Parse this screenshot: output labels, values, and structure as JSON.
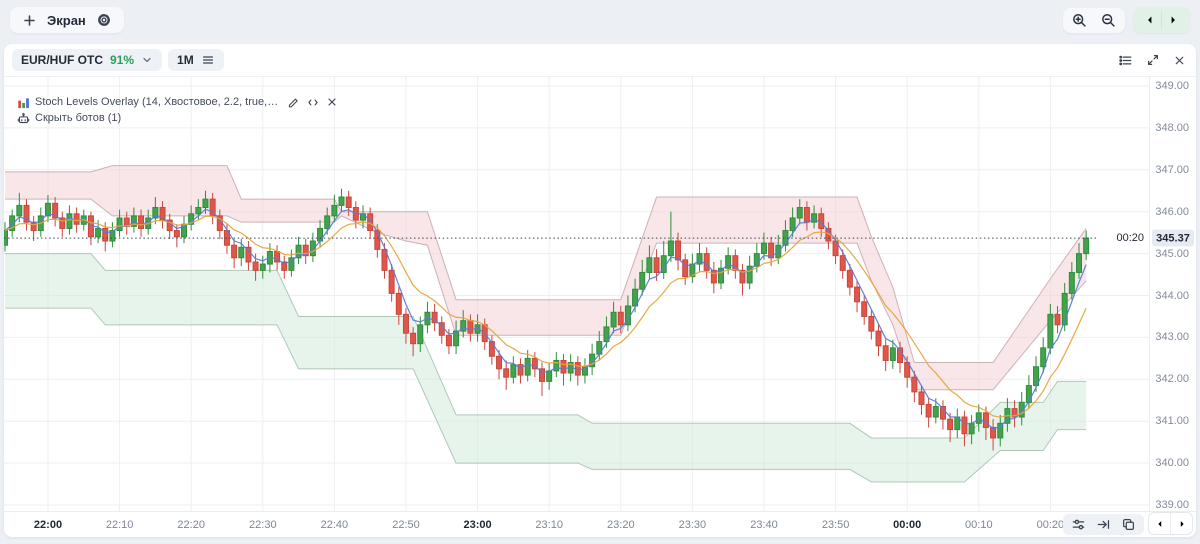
{
  "toolbar": {
    "screen_button_label": "Экран",
    "icons": [
      "plus-icon",
      "gear-icon",
      "zoom-in-icon",
      "zoom-out-icon",
      "chevron-left-icon",
      "chevron-right-icon"
    ]
  },
  "header": {
    "symbol": "EUR/HUF OTC",
    "payout": "91%",
    "timeframe": "1M",
    "icons": [
      "chevron-down-icon",
      "menu-icon",
      "list-icon",
      "expand-icon",
      "close-icon"
    ]
  },
  "legend": {
    "indicator_label": "Stoch Levels Overlay (14, Хвостовое, 2.2, true,…",
    "indicator_icons": [
      "chart-icon",
      "pencil-icon",
      "code-icon",
      "close-icon"
    ],
    "bots_label": "Скрыть ботов (1)",
    "bots_icon": "robot-icon"
  },
  "price_axis_labels": [
    "349.00",
    "348.00",
    "347.00",
    "346.00",
    "345.00",
    "344.00",
    "343.00",
    "342.00",
    "341.00",
    "340.00",
    "339.00"
  ],
  "time_axis_labels": [
    {
      "label": "22:00",
      "bold": true
    },
    {
      "label": "22:10",
      "bold": false
    },
    {
      "label": "22:20",
      "bold": false
    },
    {
      "label": "22:30",
      "bold": false
    },
    {
      "label": "22:40",
      "bold": false
    },
    {
      "label": "22:50",
      "bold": false
    },
    {
      "label": "23:00",
      "bold": true
    },
    {
      "label": "23:10",
      "bold": false
    },
    {
      "label": "23:20",
      "bold": false
    },
    {
      "label": "23:30",
      "bold": false
    },
    {
      "label": "23:40",
      "bold": false
    },
    {
      "label": "23:50",
      "bold": false
    },
    {
      "label": "00:00",
      "bold": true
    },
    {
      "label": "00:10",
      "bold": false
    },
    {
      "label": "00:20",
      "bold": false
    }
  ],
  "marker": {
    "time": "00:20",
    "price": "345.37"
  },
  "bottom_tools_icons": [
    "tune-icon",
    "skip-to-end-icon",
    "copy-icon",
    "chevron-left-icon",
    "chevron-right-icon"
  ],
  "chart_data": {
    "type": "candlestick",
    "symbol": "EUR/HUF OTC",
    "timeframe": "1M",
    "interval_minutes": 1,
    "x_first_candle_time": "21:54",
    "x_tick_labels": [
      "22:00",
      "22:10",
      "22:20",
      "22:30",
      "22:40",
      "22:50",
      "23:00",
      "23:10",
      "23:20",
      "23:30",
      "23:40",
      "23:50",
      "00:00",
      "00:10",
      "00:20"
    ],
    "y_range": [
      338.83,
      349.24
    ],
    "y_ticks": [
      339,
      340,
      341,
      342,
      343,
      344,
      345,
      346,
      347,
      348,
      349
    ],
    "current_price": 345.37,
    "current_time_label": "00:20",
    "grid": true,
    "indicator": "Stoch Levels Overlay",
    "colors": {
      "bull": "#43a24d",
      "bull_border": "#2e8e3b",
      "bear": "#e0564a",
      "bear_border": "#c7473c",
      "band_pink_fill": "#f2cdd1",
      "band_pink_edge": "#c6abaf",
      "band_green_fill": "#cfe9da",
      "band_green_edge": "#a6c3ae",
      "ma_fast": "#5b7bd5",
      "ma_slow": "#e8a33d",
      "grid": "#edeff3",
      "dotted": "#3f4450",
      "accent_green": "#2aa05b"
    },
    "overlays": [
      {
        "name": "fast-ma",
        "color": "#5b7bd5",
        "period": 4
      },
      {
        "name": "slow-ma",
        "color": "#e8a33d",
        "period": 10
      }
    ],
    "bands": {
      "upper_pink": [
        [
          0,
          346.95,
          346.3
        ],
        [
          12,
          346.95,
          346.3
        ],
        [
          15,
          347.1,
          345.9
        ],
        [
          31,
          347.1,
          345.9
        ],
        [
          33,
          346.3,
          345.75
        ],
        [
          46,
          346.3,
          345.75
        ],
        [
          47,
          346.0,
          345.9
        ],
        [
          52,
          346.0,
          345.5
        ],
        [
          56,
          346.0,
          345.3
        ],
        [
          59,
          346.0,
          345.2
        ],
        [
          63,
          343.9,
          343.05
        ],
        [
          86,
          343.9,
          343.05
        ],
        [
          91,
          346.35,
          345.25
        ],
        [
          119,
          346.35,
          345.25
        ],
        [
          121,
          345.4,
          344.35
        ],
        [
          124,
          344.2,
          343.3
        ],
        [
          127,
          342.4,
          341.75
        ],
        [
          138,
          342.4,
          341.75
        ],
        [
          146,
          344.4,
          343.4
        ],
        [
          151,
          345.6,
          344.35
        ]
      ],
      "lower_green": [
        [
          0,
          345.0,
          343.7
        ],
        [
          12,
          345.0,
          343.7
        ],
        [
          14,
          344.6,
          343.3
        ],
        [
          38,
          344.6,
          343.3
        ],
        [
          41,
          343.5,
          342.25
        ],
        [
          57,
          343.5,
          342.25
        ],
        [
          63,
          341.15,
          340.0
        ],
        [
          80,
          341.15,
          340.0
        ],
        [
          82,
          340.95,
          339.85
        ],
        [
          118,
          340.95,
          339.85
        ],
        [
          121,
          340.6,
          339.55
        ],
        [
          134,
          340.6,
          339.55
        ],
        [
          139,
          341.45,
          340.3
        ],
        [
          145,
          341.45,
          340.3
        ],
        [
          147,
          341.95,
          340.8
        ],
        [
          151,
          341.95,
          340.8
        ]
      ]
    },
    "candles": [
      [
        345.2,
        345.75,
        345.05,
        345.55
      ],
      [
        345.55,
        346.05,
        345.4,
        345.9
      ],
      [
        345.9,
        346.45,
        345.75,
        346.15
      ],
      [
        346.15,
        346.3,
        345.55,
        345.75
      ],
      [
        345.75,
        345.9,
        345.3,
        345.55
      ],
      [
        345.55,
        346.1,
        345.4,
        345.9
      ],
      [
        345.9,
        346.4,
        345.75,
        346.2
      ],
      [
        346.2,
        346.35,
        345.65,
        345.85
      ],
      [
        345.85,
        346.0,
        345.4,
        345.6
      ],
      [
        345.6,
        346.15,
        345.45,
        345.95
      ],
      [
        345.95,
        346.1,
        345.5,
        345.7
      ],
      [
        345.7,
        346.05,
        345.55,
        345.9
      ],
      [
        345.9,
        346.0,
        345.2,
        345.4
      ],
      [
        345.4,
        345.8,
        345.25,
        345.6
      ],
      [
        345.6,
        345.75,
        345.05,
        345.3
      ],
      [
        345.3,
        345.75,
        345.15,
        345.55
      ],
      [
        345.55,
        346.05,
        345.4,
        345.85
      ],
      [
        345.85,
        346.0,
        345.45,
        345.65
      ],
      [
        345.65,
        346.1,
        345.5,
        345.9
      ],
      [
        345.9,
        346.05,
        345.4,
        345.6
      ],
      [
        345.6,
        346.05,
        345.45,
        345.85
      ],
      [
        345.85,
        346.35,
        345.7,
        346.1
      ],
      [
        346.1,
        346.25,
        345.6,
        345.8
      ],
      [
        345.8,
        345.95,
        345.35,
        345.55
      ],
      [
        345.55,
        345.7,
        345.15,
        345.4
      ],
      [
        345.4,
        345.9,
        345.25,
        345.7
      ],
      [
        345.7,
        346.15,
        345.55,
        345.95
      ],
      [
        345.95,
        346.3,
        345.8,
        346.1
      ],
      [
        346.1,
        346.5,
        345.95,
        346.3
      ],
      [
        346.3,
        346.45,
        345.7,
        345.9
      ],
      [
        345.9,
        346.05,
        345.35,
        345.55
      ],
      [
        345.55,
        345.7,
        345.0,
        345.2
      ],
      [
        345.2,
        345.35,
        344.65,
        344.9
      ],
      [
        344.9,
        345.35,
        344.7,
        345.15
      ],
      [
        345.15,
        345.3,
        344.6,
        344.8
      ],
      [
        344.8,
        345.0,
        344.35,
        344.6
      ],
      [
        344.6,
        344.95,
        344.4,
        344.75
      ],
      [
        344.75,
        345.25,
        344.55,
        345.05
      ],
      [
        345.05,
        345.2,
        344.6,
        344.8
      ],
      [
        344.8,
        344.95,
        344.4,
        344.6
      ],
      [
        344.6,
        345.1,
        344.45,
        344.9
      ],
      [
        344.9,
        345.4,
        344.75,
        345.2
      ],
      [
        345.2,
        345.35,
        344.75,
        344.95
      ],
      [
        344.95,
        345.5,
        344.8,
        345.3
      ],
      [
        345.3,
        345.8,
        345.15,
        345.6
      ],
      [
        345.6,
        346.1,
        345.45,
        345.9
      ],
      [
        345.9,
        346.4,
        345.75,
        346.15
      ],
      [
        346.15,
        346.55,
        346.0,
        346.35
      ],
      [
        346.35,
        346.5,
        345.9,
        346.1
      ],
      [
        346.1,
        346.25,
        345.6,
        345.8
      ],
      [
        345.8,
        346.15,
        345.6,
        345.95
      ],
      [
        345.95,
        346.1,
        345.35,
        345.55
      ],
      [
        345.55,
        345.7,
        344.9,
        345.1
      ],
      [
        345.1,
        345.25,
        344.4,
        344.6
      ],
      [
        344.6,
        344.75,
        343.85,
        344.05
      ],
      [
        344.05,
        344.2,
        343.3,
        343.55
      ],
      [
        343.55,
        343.7,
        342.85,
        343.1
      ],
      [
        343.1,
        343.25,
        342.55,
        342.85
      ],
      [
        342.85,
        343.5,
        342.65,
        343.3
      ],
      [
        343.3,
        343.85,
        343.1,
        343.6
      ],
      [
        343.6,
        343.8,
        343.15,
        343.35
      ],
      [
        343.35,
        343.5,
        342.85,
        343.05
      ],
      [
        343.05,
        343.2,
        342.6,
        342.8
      ],
      [
        342.8,
        343.4,
        342.6,
        343.15
      ],
      [
        343.15,
        343.65,
        343.0,
        343.4
      ],
      [
        343.4,
        343.55,
        342.9,
        343.1
      ],
      [
        343.1,
        343.55,
        342.9,
        343.3
      ],
      [
        343.3,
        343.45,
        342.7,
        342.9
      ],
      [
        342.9,
        343.05,
        342.35,
        342.55
      ],
      [
        342.55,
        342.7,
        342.0,
        342.25
      ],
      [
        342.25,
        342.45,
        341.75,
        342.05
      ],
      [
        342.05,
        342.55,
        341.9,
        342.35
      ],
      [
        342.35,
        342.5,
        341.9,
        342.1
      ],
      [
        342.1,
        342.7,
        341.95,
        342.5
      ],
      [
        342.5,
        342.65,
        342.05,
        342.25
      ],
      [
        342.25,
        342.4,
        341.6,
        341.95
      ],
      [
        341.95,
        342.4,
        341.75,
        342.2
      ],
      [
        342.2,
        342.65,
        342.05,
        342.45
      ],
      [
        342.45,
        342.6,
        341.85,
        342.15
      ],
      [
        342.15,
        342.6,
        341.95,
        342.4
      ],
      [
        342.4,
        342.55,
        341.85,
        342.1
      ],
      [
        342.1,
        342.5,
        341.9,
        342.3
      ],
      [
        342.3,
        342.85,
        342.1,
        342.6
      ],
      [
        342.6,
        343.15,
        342.45,
        342.9
      ],
      [
        342.9,
        343.5,
        342.75,
        343.25
      ],
      [
        343.25,
        343.85,
        343.1,
        343.6
      ],
      [
        343.6,
        343.75,
        343.1,
        343.3
      ],
      [
        343.3,
        344.0,
        343.15,
        343.75
      ],
      [
        343.75,
        344.4,
        343.6,
        344.15
      ],
      [
        344.15,
        344.85,
        344.0,
        344.55
      ],
      [
        344.55,
        345.2,
        344.4,
        344.9
      ],
      [
        344.9,
        345.1,
        344.35,
        344.55
      ],
      [
        344.55,
        345.3,
        344.4,
        344.95
      ],
      [
        344.95,
        346.0,
        344.8,
        345.3
      ],
      [
        345.3,
        345.5,
        344.6,
        344.85
      ],
      [
        344.85,
        345.0,
        344.25,
        344.45
      ],
      [
        344.45,
        345.0,
        344.3,
        344.75
      ],
      [
        344.75,
        345.25,
        344.55,
        345.0
      ],
      [
        345.0,
        345.15,
        344.4,
        344.6
      ],
      [
        344.6,
        344.8,
        344.05,
        344.3
      ],
      [
        344.3,
        344.85,
        344.15,
        344.65
      ],
      [
        344.65,
        345.15,
        344.5,
        344.95
      ],
      [
        344.95,
        345.1,
        344.4,
        344.6
      ],
      [
        344.6,
        344.75,
        344.0,
        344.3
      ],
      [
        344.3,
        344.95,
        344.15,
        344.7
      ],
      [
        344.7,
        345.25,
        344.55,
        345.0
      ],
      [
        345.0,
        345.5,
        344.85,
        345.25
      ],
      [
        345.25,
        345.4,
        344.7,
        344.9
      ],
      [
        344.9,
        345.45,
        344.75,
        345.2
      ],
      [
        345.2,
        345.8,
        345.05,
        345.55
      ],
      [
        345.55,
        346.1,
        345.4,
        345.85
      ],
      [
        345.85,
        346.3,
        345.7,
        346.1
      ],
      [
        346.1,
        346.25,
        345.55,
        345.75
      ],
      [
        345.75,
        346.15,
        345.6,
        345.95
      ],
      [
        345.95,
        346.1,
        345.4,
        345.6
      ],
      [
        345.6,
        345.75,
        345.1,
        345.3
      ],
      [
        345.3,
        345.45,
        344.75,
        344.95
      ],
      [
        344.95,
        345.1,
        344.4,
        344.6
      ],
      [
        344.6,
        344.75,
        344.0,
        344.2
      ],
      [
        344.2,
        344.35,
        343.6,
        343.85
      ],
      [
        343.85,
        344.0,
        343.3,
        343.5
      ],
      [
        343.5,
        343.65,
        342.95,
        343.15
      ],
      [
        343.15,
        343.3,
        342.55,
        342.8
      ],
      [
        342.8,
        342.95,
        342.2,
        342.45
      ],
      [
        342.45,
        342.95,
        342.25,
        342.75
      ],
      [
        342.75,
        342.9,
        342.15,
        342.4
      ],
      [
        342.4,
        342.55,
        341.8,
        342.05
      ],
      [
        342.05,
        342.2,
        341.45,
        341.7
      ],
      [
        341.7,
        341.85,
        341.15,
        341.4
      ],
      [
        341.4,
        341.55,
        340.85,
        341.1
      ],
      [
        341.1,
        341.55,
        340.95,
        341.35
      ],
      [
        341.35,
        341.5,
        340.8,
        341.05
      ],
      [
        341.05,
        341.2,
        340.5,
        340.8
      ],
      [
        340.8,
        341.3,
        340.6,
        341.1
      ],
      [
        341.1,
        341.25,
        340.4,
        340.7
      ],
      [
        340.7,
        341.15,
        340.45,
        340.95
      ],
      [
        340.95,
        341.4,
        340.75,
        341.2
      ],
      [
        341.2,
        341.35,
        340.55,
        340.85
      ],
      [
        340.85,
        341.05,
        340.3,
        340.6
      ],
      [
        340.6,
        341.15,
        340.4,
        340.95
      ],
      [
        340.95,
        341.55,
        340.75,
        341.3
      ],
      [
        341.3,
        341.5,
        340.85,
        341.1
      ],
      [
        341.1,
        341.7,
        340.9,
        341.45
      ],
      [
        341.45,
        342.1,
        341.3,
        341.85
      ],
      [
        341.85,
        342.55,
        341.7,
        342.3
      ],
      [
        342.3,
        343.0,
        342.15,
        342.75
      ],
      [
        342.75,
        343.8,
        342.6,
        343.55
      ],
      [
        343.55,
        343.75,
        343.1,
        343.3
      ],
      [
        343.3,
        344.3,
        343.15,
        344.05
      ],
      [
        344.05,
        344.8,
        343.9,
        344.55
      ],
      [
        344.55,
        345.25,
        344.4,
        345.0
      ],
      [
        345.0,
        345.55,
        344.85,
        345.37
      ]
    ]
  }
}
